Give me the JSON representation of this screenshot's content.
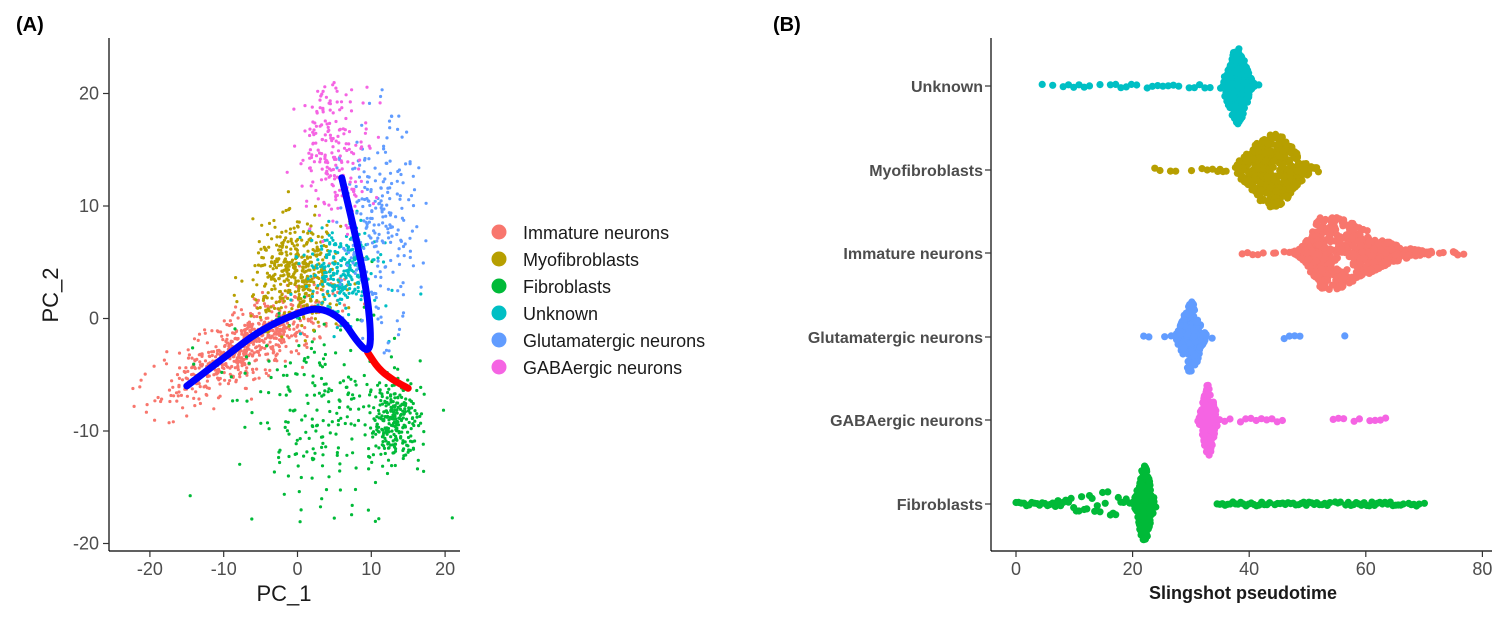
{
  "panels": {
    "a_label": "(A)",
    "b_label": "(B)"
  },
  "chart_data": [
    {
      "type": "scatter",
      "panel": "(A)",
      "xlabel": "PC_1",
      "ylabel": "PC_2",
      "xlim": [
        -25,
        22
      ],
      "ylim": [
        -21,
        25
      ],
      "xticks": [
        -20,
        -10,
        0,
        10,
        20
      ],
      "yticks": [
        -20,
        -10,
        0,
        10,
        20
      ],
      "grid": false,
      "legend_position": "right",
      "series": [
        {
          "name": "Immature neurons",
          "color": "#F8766D",
          "center": [
            -7,
            -2.5
          ],
          "spread": [
            5,
            2.5
          ]
        },
        {
          "name": "Myofibroblasts",
          "color": "#B79F00",
          "center": [
            0,
            4
          ],
          "spread": [
            3,
            2.2
          ]
        },
        {
          "name": "Fibroblasts",
          "color": "#00BA38",
          "center": [
            11,
            -7
          ],
          "spread": [
            5,
            3.5
          ]
        },
        {
          "name": "Unknown",
          "color": "#00BFC4",
          "center": [
            6,
            4
          ],
          "spread": [
            2.5,
            2
          ]
        },
        {
          "name": "Glutamatergic neurons",
          "color": "#619CFF",
          "center": [
            11,
            8
          ],
          "spread": [
            2.5,
            4.5
          ]
        },
        {
          "name": "GABAergic neurons",
          "color": "#F564E3",
          "center": [
            5,
            15
          ],
          "spread": [
            2.5,
            3
          ]
        }
      ],
      "trajectories": [
        {
          "color": "#0000FF",
          "points": [
            [
              -15,
              -6
            ],
            [
              -10,
              -3.5
            ],
            [
              -5,
              -1
            ],
            [
              0,
              0.5
            ],
            [
              3,
              1
            ],
            [
              6,
              0
            ],
            [
              8,
              -2
            ],
            [
              9.5,
              -3
            ],
            [
              10,
              -2
            ],
            [
              9.5,
              2
            ],
            [
              8,
              7
            ],
            [
              6,
              12.5
            ]
          ]
        },
        {
          "color": "#FF0000",
          "points": [
            [
              9.5,
              -3
            ],
            [
              11,
              -4.5
            ],
            [
              13,
              -5.5
            ],
            [
              15,
              -6.2
            ]
          ]
        }
      ]
    },
    {
      "type": "scatter",
      "subtype": "beeswarm",
      "panel": "(B)",
      "xlabel": "Slingshot pseudotime",
      "ylabel": "",
      "xlim": [
        -3,
        81
      ],
      "xticks": [
        0,
        20,
        40,
        60,
        80
      ],
      "grid": false,
      "categories": [
        "Unknown",
        "Myofibroblasts",
        "Immature neurons",
        "Glutamatergic neurons",
        "GABAergic neurons",
        "Fibroblasts"
      ],
      "series": [
        {
          "name": "Unknown",
          "color": "#00BFC4",
          "min": 4.5,
          "median": 38,
          "max": 44
        },
        {
          "name": "Myofibroblasts",
          "color": "#B79F00",
          "min": 22,
          "median": 44,
          "max": 52
        },
        {
          "name": "Immature neurons",
          "color": "#F8766D",
          "min": 37,
          "median": 53,
          "max": 77
        },
        {
          "name": "Glutamatergic neurons",
          "color": "#619CFF",
          "min": 21,
          "median": 30,
          "max": 57
        },
        {
          "name": "GABAergic neurons",
          "color": "#F564E3",
          "min": 31,
          "median": 33,
          "max": 64
        },
        {
          "name": "Fibroblasts",
          "color": "#00BA38",
          "min": 0,
          "median": 22,
          "max": 70.5
        }
      ]
    }
  ]
}
